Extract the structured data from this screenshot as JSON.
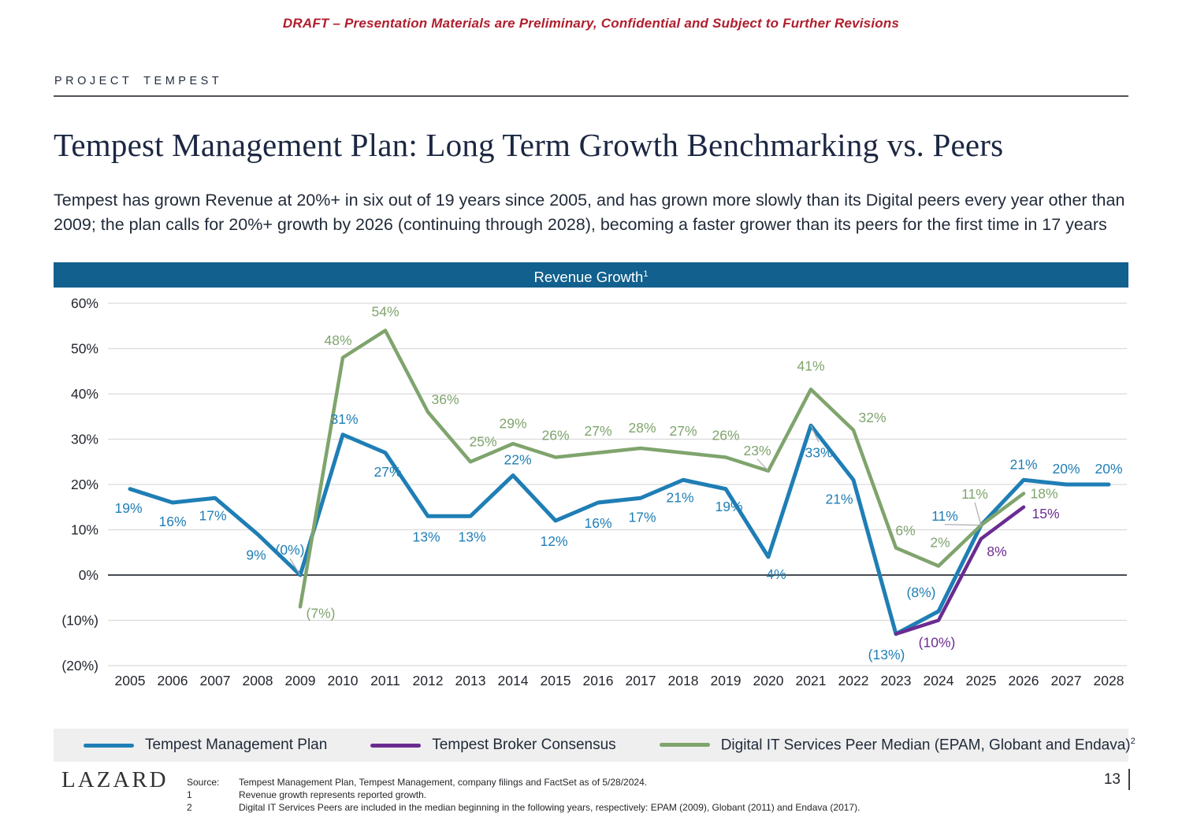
{
  "header": {
    "draft_notice": "DRAFT – Presentation Materials are Preliminary, Confidential and Subject to Further Revisions",
    "project_label": "PROJECT TEMPEST",
    "title": "Tempest Management Plan: Long Term Growth Benchmarking vs. Peers",
    "summary": "Tempest has grown Revenue at 20%+ in six out of 19 years since 2005, and has grown more slowly than its Digital peers every year other than 2009; the plan calls for 20%+ growth by 2026 (continuing through 2028), becoming a faster grower than its peers for the first time in 17 years"
  },
  "chart": {
    "header": "Revenue Growth",
    "header_sup": "1"
  },
  "chart_data": {
    "type": "line",
    "title": "Revenue Growth",
    "categories": [
      "2005",
      "2006",
      "2007",
      "2008",
      "2009",
      "2010",
      "2011",
      "2012",
      "2013",
      "2014",
      "2015",
      "2016",
      "2017",
      "2018",
      "2019",
      "2020",
      "2021",
      "2022",
      "2023",
      "2024",
      "2025",
      "2026",
      "2027",
      "2028"
    ],
    "ylim": [
      -20,
      60
    ],
    "ytick_step": 10,
    "ytick_labels": [
      "60%",
      "50%",
      "40%",
      "30%",
      "20%",
      "10%",
      "0%",
      "(10%)",
      "(20%)"
    ],
    "grid": true,
    "legend_position": "bottom",
    "series": [
      {
        "name": "Tempest Management Plan",
        "name_sup": "",
        "color": "#1F7EB5",
        "width": 5,
        "values": [
          19,
          16,
          17,
          9,
          0,
          31,
          27,
          13,
          13,
          22,
          12,
          16,
          17,
          21,
          19,
          4,
          33,
          21,
          -13,
          -8,
          11,
          21,
          20,
          20
        ],
        "labels": [
          {
            "t": "19%",
            "dx": -2,
            "dy": 30
          },
          {
            "t": "16%",
            "dx": 0,
            "dy": 30
          },
          {
            "t": "17%",
            "dx": -3,
            "dy": 28
          },
          {
            "t": "9%",
            "dx": -2,
            "dy": 32
          },
          {
            "t": "(0%)",
            "dx": -13,
            "dy": -26,
            "leader": true
          },
          {
            "t": "31%",
            "dx": 2,
            "dy": -14
          },
          {
            "t": "27%",
            "dx": 3,
            "dy": 30
          },
          {
            "t": "13%",
            "dx": -2,
            "dy": 32
          },
          {
            "t": "13%",
            "dx": 2,
            "dy": 32
          },
          {
            "t": "22%",
            "dx": 6,
            "dy": -14
          },
          {
            "t": "12%",
            "dx": -2,
            "dy": 32
          },
          {
            "t": "16%",
            "dx": 0,
            "dy": 32
          },
          {
            "t": "17%",
            "dx": 2,
            "dy": 30
          },
          {
            "t": "21%",
            "dx": -4,
            "dy": 28
          },
          {
            "t": "19%",
            "dx": 4,
            "dy": 28
          },
          {
            "t": "4%",
            "dx": 10,
            "dy": 28
          },
          {
            "t": "33%",
            "dx": 10,
            "dy": 40,
            "leader": true
          },
          {
            "t": "21%",
            "dx": -18,
            "dy": 30
          },
          {
            "t": "(13%)",
            "dx": -12,
            "dy": 32
          },
          {
            "t": "(8%)",
            "dx": -22,
            "dy": -18
          },
          {
            "t": "11%",
            "dx": -46,
            "dy": -6,
            "leader": true
          },
          {
            "t": "21%",
            "dx": 0,
            "dy": -14
          },
          {
            "t": "20%",
            "dx": 0,
            "dy": -14
          },
          {
            "t": "20%",
            "dx": 0,
            "dy": -14
          }
        ]
      },
      {
        "name": "Tempest Broker Consensus",
        "name_sup": "",
        "color": "#6B2C91",
        "width": 4.5,
        "values": [
          null,
          null,
          null,
          null,
          null,
          null,
          null,
          null,
          null,
          null,
          null,
          null,
          null,
          null,
          null,
          null,
          null,
          null,
          -13,
          -10,
          8,
          15,
          null,
          null
        ],
        "labels": [
          null,
          null,
          null,
          null,
          null,
          null,
          null,
          null,
          null,
          null,
          null,
          null,
          null,
          null,
          null,
          null,
          null,
          null,
          null,
          {
            "t": "(10%)",
            "dx": -2,
            "dy": 34
          },
          {
            "t": "8%",
            "dx": 20,
            "dy": 22
          },
          {
            "t": "15%",
            "dx": 28,
            "dy": 14
          },
          null,
          null
        ]
      },
      {
        "name": "Digital IT Services Peer Median (EPAM, Globant and Endava)",
        "name_sup": "2",
        "color": "#7FA46D",
        "width": 4.5,
        "values": [
          null,
          null,
          null,
          null,
          -7,
          48,
          54,
          36,
          25,
          29,
          26,
          27,
          28,
          27,
          26,
          23,
          41,
          32,
          6,
          2,
          11,
          18,
          null,
          null
        ],
        "labels": [
          null,
          null,
          null,
          null,
          {
            "t": "(7%)",
            "dx": 26,
            "dy": 14
          },
          {
            "t": "48%",
            "dx": -6,
            "dy": -16
          },
          {
            "t": "54%",
            "dx": 0,
            "dy": -18
          },
          {
            "t": "36%",
            "dx": 22,
            "dy": -10
          },
          {
            "t": "25%",
            "dx": 16,
            "dy": -20
          },
          {
            "t": "29%",
            "dx": 0,
            "dy": -20
          },
          {
            "t": "26%",
            "dx": 0,
            "dy": -22
          },
          {
            "t": "27%",
            "dx": 0,
            "dy": -22
          },
          {
            "t": "28%",
            "dx": 2,
            "dy": -20
          },
          {
            "t": "27%",
            "dx": 0,
            "dy": -22
          },
          {
            "t": "26%",
            "dx": 0,
            "dy": -22
          },
          {
            "t": "23%",
            "dx": -14,
            "dy": -20,
            "leader": true
          },
          {
            "t": "41%",
            "dx": 0,
            "dy": -24
          },
          {
            "t": "32%",
            "dx": 24,
            "dy": -10
          },
          {
            "t": "6%",
            "dx": 12,
            "dy": -16
          },
          {
            "t": "2%",
            "dx": 2,
            "dy": -24
          },
          {
            "t": "11%",
            "dx": -8,
            "dy": -34,
            "leader": true
          },
          {
            "t": "18%",
            "dx": 26,
            "dy": 6
          },
          null,
          null
        ]
      }
    ]
  },
  "footer": {
    "logo": "LAZARD",
    "page_number": "13",
    "source_rows": [
      {
        "label": "Source:",
        "text": "Tempest Management Plan, Tempest Management, company filings and FactSet as of 5/28/2024."
      },
      {
        "label": "1",
        "text": "Revenue growth represents reported growth."
      },
      {
        "label": "2",
        "text": "Digital IT Services Peers are included in the median beginning in the following years, respectively: EPAM (2009), Globant (2011) and Endava (2017)."
      }
    ]
  }
}
